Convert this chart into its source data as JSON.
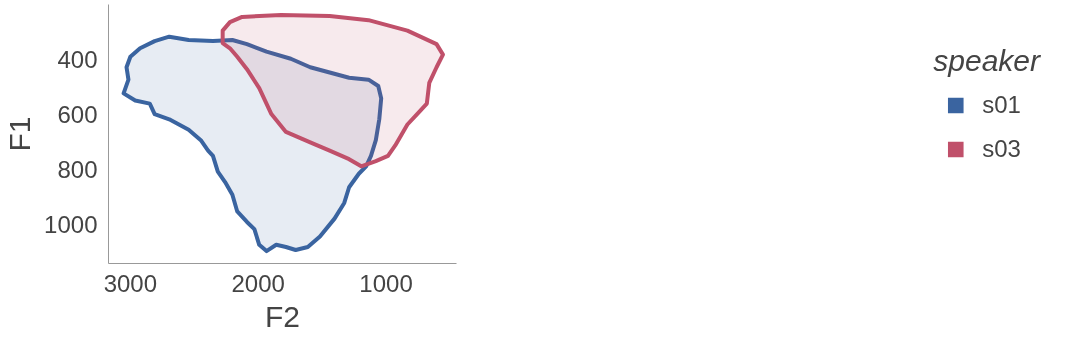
{
  "chart_data": {
    "type": "area",
    "xlabel": "F2",
    "ylabel": "F1",
    "legend_title": "speaker",
    "legend": "right",
    "grid": false,
    "xlim": [
      3171,
      449
    ],
    "xticks": [
      3000,
      2000,
      1000
    ],
    "ylim": [
      1140,
      199
    ],
    "yticks": [
      400,
      600,
      800,
      1000
    ],
    "series": [
      {
        "name": "s01",
        "color": "#3a64a0",
        "x": [
          3053,
          3015,
          3030,
          3000,
          2924,
          2810,
          2696,
          2544,
          2354,
          2202,
          2088,
          1935,
          1745,
          1593,
          1441,
          1289,
          1137,
          1061,
          1038,
          1053,
          1080,
          1118,
          1156,
          1213,
          1289,
          1327,
          1403,
          1517,
          1612,
          1707,
          1783,
          1859,
          1935,
          1992,
          2030,
          2088,
          2164,
          2202,
          2259,
          2316,
          2354,
          2392,
          2449,
          2544,
          2696,
          2810,
          2848,
          2962
        ],
        "values": [
          522,
          472,
          427,
          389,
          358,
          332,
          316,
          328,
          332,
          328,
          343,
          370,
          396,
          427,
          446,
          465,
          472,
          495,
          540,
          616,
          692,
          749,
          787,
          814,
          863,
          920,
          977,
          1042,
          1080,
          1091,
          1080,
          1072,
          1095,
          1072,
          1015,
          989,
          951,
          890,
          844,
          806,
          749,
          730,
          692,
          654,
          616,
          597,
          559,
          548
        ]
      },
      {
        "name": "s03",
        "color": "#c0506a",
        "x": [
          2278,
          2278,
          2221,
          2126,
          1821,
          1441,
          1137,
          833,
          605,
          555,
          605,
          662,
          681,
          757,
          833,
          928,
          985,
          1080,
          1194,
          1289,
          1441,
          1593,
          1783,
          1897,
          1992,
          2088,
          2164,
          2221
        ],
        "values": [
          339,
          294,
          263,
          244,
          237,
          241,
          256,
          294,
          343,
          381,
          427,
          484,
          559,
          597,
          635,
          711,
          749,
          768,
          787,
          761,
          730,
          700,
          662,
          597,
          503,
          434,
          389,
          358
        ]
      }
    ]
  }
}
